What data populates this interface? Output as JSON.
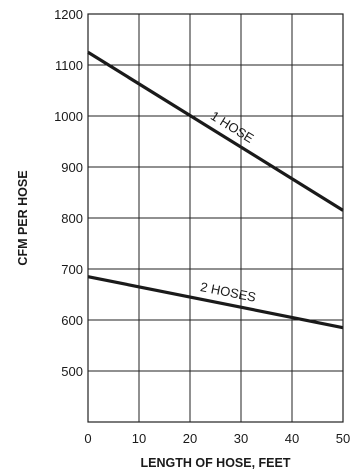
{
  "chart_data": {
    "type": "line",
    "title": "",
    "xlabel": "LENGTH OF HOSE, FEET",
    "ylabel": "CFM PER HOSE",
    "xlim": [
      0,
      50
    ],
    "ylim": [
      400,
      1200
    ],
    "x_ticks": [
      0,
      10,
      20,
      30,
      40,
      50
    ],
    "y_ticks": [
      500,
      600,
      700,
      800,
      900,
      1000,
      1100,
      1200
    ],
    "grid": true,
    "legend": "none",
    "series": [
      {
        "name": "1 HOSE",
        "x": [
          0,
          50
        ],
        "y": [
          1125,
          815
        ]
      },
      {
        "name": "2 HOSES",
        "x": [
          0,
          50
        ],
        "y": [
          685,
          585
        ]
      }
    ],
    "annotations": [
      {
        "text": "1 HOSE",
        "series": 0,
        "x": 27
      },
      {
        "text": "2 HOSES",
        "series": 1,
        "x": 27
      }
    ]
  }
}
